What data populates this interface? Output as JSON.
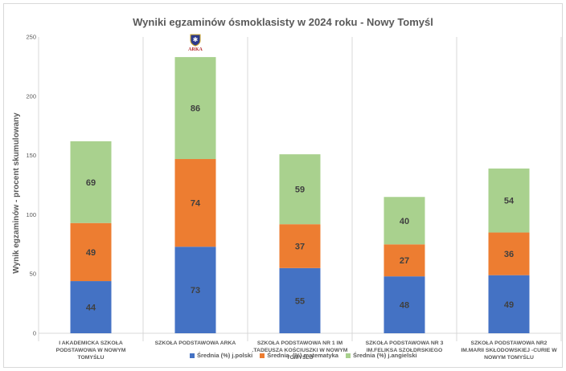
{
  "chart_data": {
    "type": "bar",
    "stacked": true,
    "title": "Wyniki egzaminów ósmoklasisty w 2024 roku - Nowy Tomyśl",
    "ylabel": "Wynik egzaminów - procent skumulowany",
    "xlabel": "",
    "ylim": [
      0,
      250
    ],
    "yticks": [
      0,
      50,
      100,
      150,
      200,
      250
    ],
    "grid": "vertical-separators",
    "legend_position": "bottom",
    "categories": [
      [
        "I AKADEMICKA SZKOŁA",
        "PODSTAWOWA W NOWYM",
        "TOMYŚLU"
      ],
      [
        "SZKOŁA PODSTAWOWA ARKA"
      ],
      [
        "SZKOŁA PODSTAWOWA NR 1 IM",
        ".TADEUSZA KOŚCIUSZKI W NOWYM",
        "TOMYŚLU"
      ],
      [
        "SZKOŁA PODSTAWOWA NR 3",
        "IM.FELIKSA SZOŁDRSKIEGO"
      ],
      [
        "SZKOŁA PODSTAWOWA NR2",
        "IM.MARII SKŁODOWSKIEJ -CURIE W",
        "NOWYM TOMYŚLU"
      ]
    ],
    "series": [
      {
        "name": "Średnia (%) j.polski",
        "color": "#4472c4",
        "values": [
          44,
          73,
          55,
          48,
          49
        ]
      },
      {
        "name": "Średnia  (%) matematyka",
        "color": "#ed7d31",
        "values": [
          49,
          74,
          37,
          27,
          36
        ]
      },
      {
        "name": "Średnia (%) j.angielski",
        "color": "#a9d18e",
        "values": [
          69,
          86,
          59,
          40,
          54
        ]
      }
    ],
    "annotations": [
      {
        "category_index": 1,
        "type": "logo",
        "text": "ARKA"
      }
    ]
  }
}
